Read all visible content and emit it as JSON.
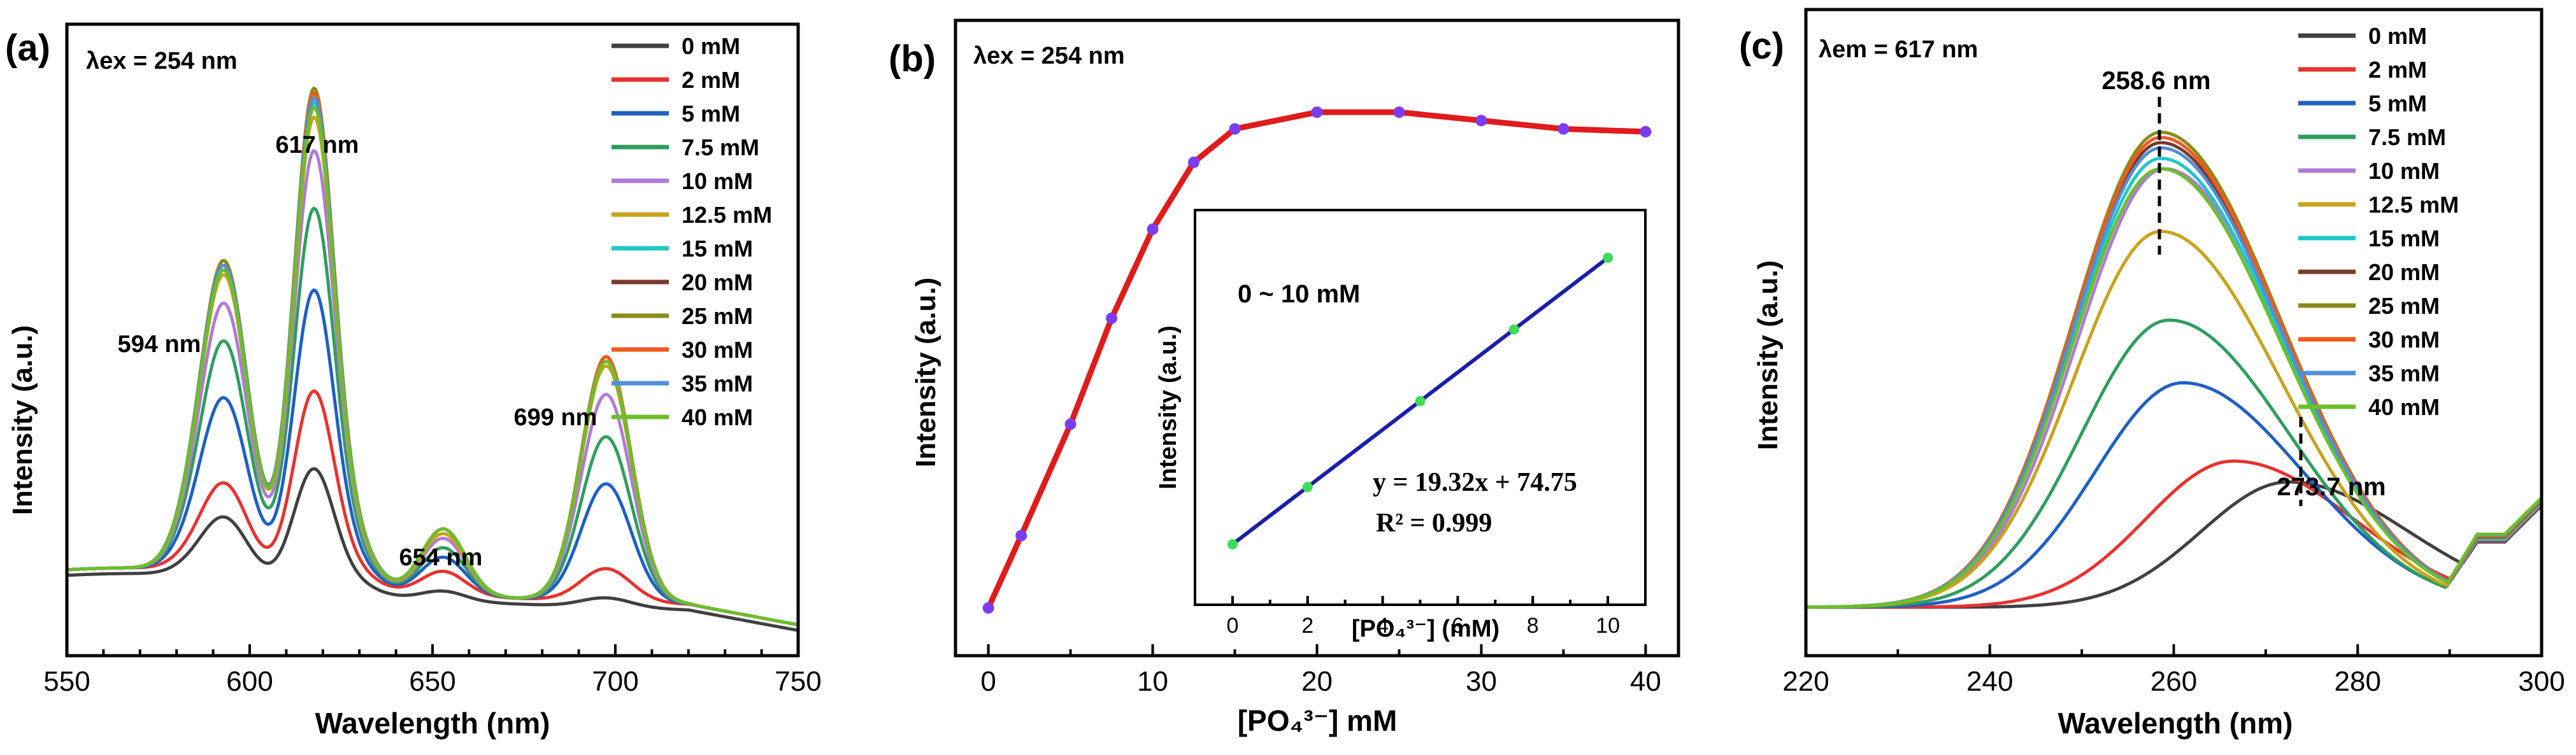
{
  "chart_data": [
    {
      "type": "line",
      "panel_label": "(a)",
      "annotation": "λex = 254 nm",
      "xlabel": "Wavelength (nm)",
      "ylabel": "Intensity (a.u.)",
      "xlim": [
        550,
        750
      ],
      "x_ticks": [
        "550",
        "600",
        "650",
        "700",
        "750"
      ],
      "peak_labels": [
        "594 nm",
        "617 nm",
        "654 nm",
        "699 nm"
      ],
      "legend_position": "top-right",
      "legend": [
        "0 mM",
        "2 mM",
        "5 mM",
        "7.5 mM",
        "10 mM",
        "12.5 mM",
        "15 mM",
        "20 mM",
        "25 mM",
        "30 mM",
        "35 mM",
        "40 mM"
      ],
      "series": [
        {
          "name": "0 mM",
          "color": "#404040",
          "peaks": {
            "594": 0.13,
            "617": 0.25,
            "654": 0.02,
            "699": 0.02
          }
        },
        {
          "name": "2 mM",
          "color": "#e8322e",
          "peaks": {
            "594": 0.19,
            "617": 0.4,
            "654": 0.05,
            "699": 0.07
          }
        },
        {
          "name": "5 mM",
          "color": "#1f5fc4",
          "peaks": {
            "594": 0.37,
            "617": 0.61,
            "654": 0.08,
            "699": 0.25
          }
        },
        {
          "name": "7.5 mM",
          "color": "#2e9e5e",
          "peaks": {
            "594": 0.49,
            "617": 0.78,
            "654": 0.1,
            "699": 0.35
          }
        },
        {
          "name": "10 mM",
          "color": "#b07ad6",
          "peaks": {
            "594": 0.57,
            "617": 0.9,
            "654": 0.12,
            "699": 0.44
          }
        },
        {
          "name": "12.5 mM",
          "color": "#c9a21a",
          "peaks": {
            "594": 0.63,
            "617": 0.97,
            "654": 0.13,
            "699": 0.5
          }
        },
        {
          "name": "15 mM",
          "color": "#1fc7c7",
          "peaks": {
            "594": 0.64,
            "617": 1.0,
            "654": 0.14,
            "699": 0.51
          }
        },
        {
          "name": "20 mM",
          "color": "#7a3b2e",
          "peaks": {
            "594": 0.66,
            "617": 1.02,
            "654": 0.14,
            "699": 0.52
          }
        },
        {
          "name": "25 mM",
          "color": "#8a8a1a",
          "peaks": {
            "594": 0.66,
            "617": 1.03,
            "654": 0.14,
            "699": 0.52
          }
        },
        {
          "name": "30 mM",
          "color": "#f05a1e",
          "peaks": {
            "594": 0.65,
            "617": 1.02,
            "654": 0.14,
            "699": 0.52
          }
        },
        {
          "name": "35 mM",
          "color": "#4f8fd9",
          "peaks": {
            "594": 0.65,
            "617": 1.01,
            "654": 0.14,
            "699": 0.51
          }
        },
        {
          "name": "40 mM",
          "color": "#6cbf2a",
          "peaks": {
            "594": 0.64,
            "617": 0.99,
            "654": 0.14,
            "699": 0.51
          }
        }
      ]
    },
    {
      "type": "line",
      "panel_label": "(b)",
      "annotation": "λex = 254 nm",
      "xlabel": "[PO₄³⁻] mM",
      "ylabel": "Intensity (a.u.)",
      "xlim": [
        -2,
        42
      ],
      "x_ticks": [
        "0",
        "10",
        "20",
        "30",
        "40"
      ],
      "line_color": "#e01b1b",
      "marker_color": "#7a3df0",
      "x": [
        0,
        2,
        5,
        7.5,
        10,
        12.5,
        15,
        20,
        25,
        30,
        35,
        40
      ],
      "y": [
        0.0,
        0.13,
        0.33,
        0.52,
        0.68,
        0.8,
        0.86,
        0.89,
        0.89,
        0.875,
        0.86,
        0.855
      ],
      "inset": {
        "title": "0 ~ 10 mM",
        "xlabel": "[PO₄³⁻] (mM)",
        "ylabel": "Intensity (a.u.)",
        "xlim": [
          -1,
          11
        ],
        "x_ticks": [
          "0",
          "2",
          "4",
          "6",
          "8",
          "10"
        ],
        "fit_equation": "y = 19.32x + 74.75",
        "r_squared": "R² = 0.999",
        "line_color": "#1b1fa8",
        "marker_color": "#3ddc5a",
        "x": [
          0,
          2,
          5,
          7.5,
          10
        ],
        "y": [
          74.75,
          113.4,
          171.3,
          219.7,
          268.0
        ]
      }
    },
    {
      "type": "line",
      "panel_label": "(c)",
      "annotation": "λem = 617 nm",
      "xlabel": "Wavelength (nm)",
      "ylabel": "Intensity (a.u.)",
      "xlim": [
        220,
        300
      ],
      "x_ticks": [
        "220",
        "240",
        "260",
        "280",
        "300"
      ],
      "peak_labels": [
        "258.6 nm",
        "273.7 nm"
      ],
      "legend_position": "top-right",
      "legend": [
        "0 mM",
        "2 mM",
        "5 mM",
        "7.5 mM",
        "10 mM",
        "12.5 mM",
        "15 mM",
        "20 mM",
        "25 mM",
        "30 mM",
        "35 mM",
        "40 mM"
      ],
      "series": [
        {
          "name": "0 mM",
          "color": "#404040",
          "center": 272.5,
          "peak": 0.24
        },
        {
          "name": "2 mM",
          "color": "#e8322e",
          "center": 266.5,
          "peak": 0.28
        },
        {
          "name": "5 mM",
          "color": "#1f5fc4",
          "center": 261.0,
          "peak": 0.43
        },
        {
          "name": "7.5 mM",
          "color": "#2e9e5e",
          "center": 259.5,
          "peak": 0.55
        },
        {
          "name": "10 mM",
          "color": "#b07ad6",
          "center": 259.0,
          "peak": 0.84
        },
        {
          "name": "12.5 mM",
          "color": "#c9a21a",
          "center": 258.6,
          "peak": 0.72
        },
        {
          "name": "15 mM",
          "color": "#1fc7c7",
          "center": 258.6,
          "peak": 0.86
        },
        {
          "name": "20 mM",
          "color": "#7a3b2e",
          "center": 258.6,
          "peak": 0.89
        },
        {
          "name": "25 mM",
          "color": "#8a8a1a",
          "center": 258.6,
          "peak": 0.91
        },
        {
          "name": "30 mM",
          "color": "#f05a1e",
          "center": 258.6,
          "peak": 0.9
        },
        {
          "name": "35 mM",
          "color": "#4f8fd9",
          "center": 258.6,
          "peak": 0.88
        },
        {
          "name": "40 mM",
          "color": "#6cbf2a",
          "center": 258.6,
          "peak": 0.84
        }
      ]
    }
  ]
}
